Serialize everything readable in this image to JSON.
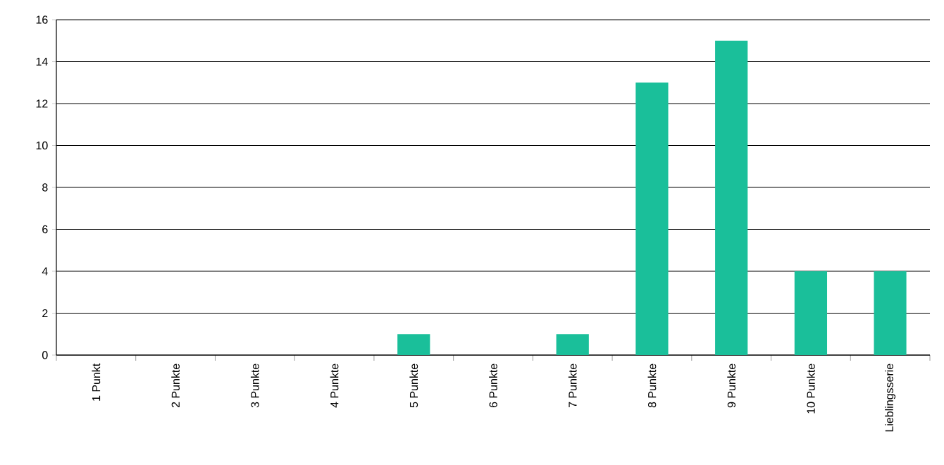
{
  "chart_data": {
    "type": "bar",
    "categories": [
      "1 Punkt",
      "2 Punkte",
      "3 Punkte",
      "4 Punkte",
      "5 Punkte",
      "6 Punkte",
      "7 Punkte",
      "8 Punkte",
      "9 Punkte",
      "10 Punkte",
      "Lieblingsserie"
    ],
    "values": [
      0,
      0,
      0,
      0,
      1,
      0,
      1,
      13,
      15,
      4,
      4
    ],
    "color": "#1abf9a",
    "ylim": [
      0,
      16
    ],
    "yticks": [
      0,
      2,
      4,
      6,
      8,
      10,
      12,
      14,
      16
    ],
    "grid": "y"
  }
}
